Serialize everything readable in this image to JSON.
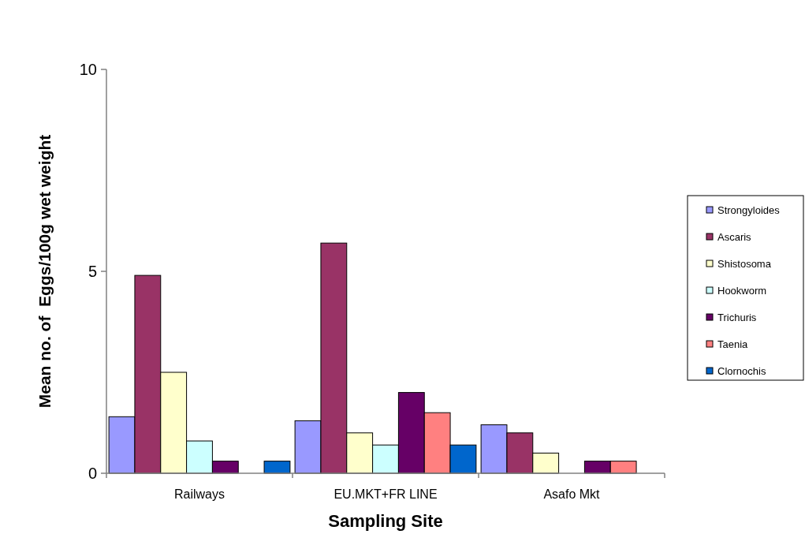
{
  "chart_data": {
    "type": "bar",
    "xlabel": "Sampling Site",
    "ylabel": "Mean no. of  Eggs/100g wet weight",
    "categories": [
      "Railways",
      "EU.MKT+FR LINE",
      "Asafo Mkt"
    ],
    "series": [
      {
        "name": "Strongyloides",
        "color": "#9999ff",
        "values": [
          1.4,
          1.3,
          1.2
        ]
      },
      {
        "name": "Ascaris",
        "color": "#993366",
        "values": [
          4.9,
          5.7,
          1.0
        ]
      },
      {
        "name": "Shistosoma",
        "color": "#ffffcc",
        "values": [
          2.5,
          1.0,
          0.5
        ]
      },
      {
        "name": "Hookworm",
        "color": "#ccffff",
        "values": [
          0.8,
          0.7,
          0
        ]
      },
      {
        "name": "Trichuris",
        "color": "#660066",
        "values": [
          0.3,
          2.0,
          0.3
        ]
      },
      {
        "name": "Taenia",
        "color": "#ff8080",
        "values": [
          0,
          1.5,
          0.3
        ]
      },
      {
        "name": "Clornochis",
        "color": "#0066cc",
        "values": [
          0.3,
          0.7,
          0
        ]
      }
    ],
    "ylim": [
      0,
      10
    ],
    "yticks": [
      0,
      5,
      10
    ],
    "grid": false,
    "legend": "right"
  }
}
